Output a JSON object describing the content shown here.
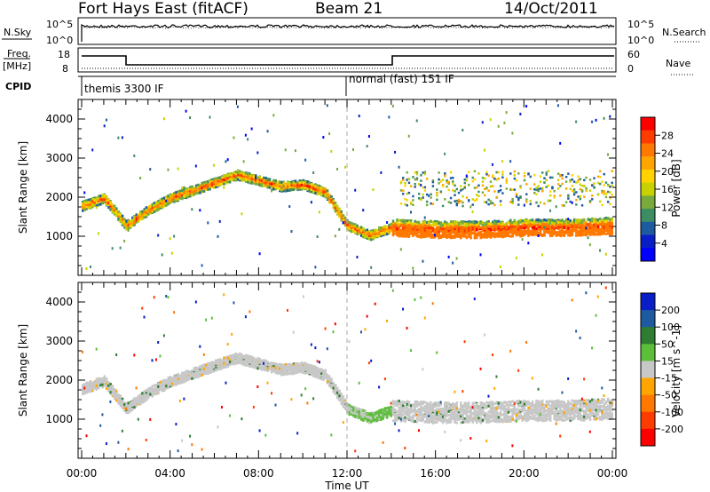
{
  "header": {
    "station": "Fort Hays East (fitACF)",
    "beam": "Beam 21",
    "date": "14/Oct/2011"
  },
  "top_panels": {
    "nsky_label": "N.Sky",
    "nsearch_label": "N.Search",
    "left_ticks": [
      "10^5",
      "10^0"
    ],
    "right_ticks": [
      "10^5",
      "10^0"
    ],
    "freq_label": "Freq.",
    "freq_unit": "[MHz]",
    "freq_ticks": [
      "18",
      "8"
    ],
    "nave_label": "Nave",
    "nave_ticks": [
      "60",
      "0"
    ],
    "cpid_label": "CPID",
    "cpid_segments": [
      "themis 3300 IF",
      "normal (fast) 151 IF"
    ]
  },
  "chart_data": [
    {
      "type": "heatmap",
      "title": "",
      "ylabel": "Slant Range [km]",
      "xlabel": "",
      "x_ticks": [
        "00:00",
        "04:00",
        "08:00",
        "12:00",
        "16:00",
        "20:00",
        "00:00"
      ],
      "y_ticks": [
        "1000",
        "2000",
        "3000",
        "4000"
      ],
      "ylim": [
        0,
        4500
      ],
      "colorbar": {
        "label": "Power [dB]",
        "ticks": [
          "28",
          "24",
          "20",
          "16",
          "12",
          "8",
          "4"
        ],
        "colors": [
          "#ff0000",
          "#ff3c00",
          "#ff7800",
          "#ffa500",
          "#ffd200",
          "#c8d200",
          "#78aa3c",
          "#3c8c64",
          "#1e5aa0",
          "#0a1ec8",
          "#0000ff"
        ]
      },
      "bands_km_by_hour": {
        "hours": [
          0,
          1,
          2,
          3,
          4,
          5,
          6,
          7,
          8,
          9,
          10,
          11,
          12,
          13,
          14,
          16,
          18,
          20,
          22,
          24
        ],
        "main_echo_center": [
          1800,
          2000,
          1300,
          1700,
          2000,
          2200,
          2400,
          2600,
          2450,
          2300,
          2350,
          2150,
          1300,
          1050,
          1250,
          1200,
          1200,
          1250,
          1250,
          1300
        ]
      }
    },
    {
      "type": "heatmap",
      "title": "",
      "ylabel": "Slant Range [km]",
      "xlabel": "Time UT",
      "x_ticks": [
        "00:00",
        "04:00",
        "08:00",
        "12:00",
        "16:00",
        "20:00",
        "00:00"
      ],
      "y_ticks": [
        "1000",
        "2000",
        "3000",
        "4000"
      ],
      "ylim": [
        0,
        4500
      ],
      "colorbar": {
        "label": "Velocity [m s^-1]",
        "ticks": [
          "200",
          "100",
          "50",
          "15",
          "-15",
          "-50",
          "-100",
          "-200"
        ],
        "colors": [
          "#0a1ec8",
          "#1e5aa0",
          "#2e7d32",
          "#5cbf3a",
          "#c8c8c8",
          "#ffa500",
          "#ff7800",
          "#ff3c00",
          "#ff0000"
        ]
      }
    }
  ]
}
